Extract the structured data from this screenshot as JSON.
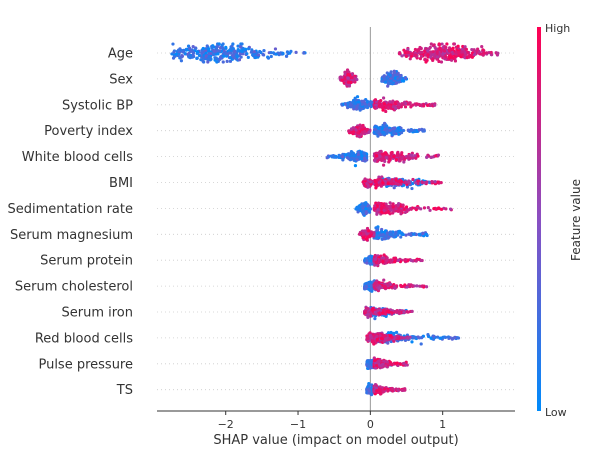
{
  "chart_data": {
    "type": "scatter",
    "subtype": "shap-beeswarm",
    "title": "",
    "xlabel": "SHAP value (impact on model output)",
    "ylabel": "",
    "xlim": [
      -2.95,
      2.0
    ],
    "x_ticks": [
      "−2",
      "−1",
      "0",
      "1"
    ],
    "x_tick_values": [
      -2,
      -1,
      0,
      1
    ],
    "grid": false,
    "zero_line": true,
    "colorbar": {
      "label": "Feature value",
      "high_label": "High",
      "low_label": "Low",
      "high_color": "#ff0052",
      "low_color": "#008bfb"
    },
    "features": [
      {
        "name": "Age",
        "low_range": [
          -2.75,
          -0.9
        ],
        "high_range": [
          0.4,
          1.8
        ],
        "low_peak": -2.1,
        "high_peak": 1.0,
        "density": 1.0
      },
      {
        "name": "Sex",
        "low_range": [
          0.15,
          0.5
        ],
        "high_range": [
          -0.42,
          -0.18
        ],
        "low_peak": 0.32,
        "high_peak": -0.3,
        "density": 0.55
      },
      {
        "name": "Systolic BP",
        "low_range": [
          -0.4,
          0.05
        ],
        "high_range": [
          0.05,
          0.9
        ],
        "low_peak": -0.15,
        "high_peak": 0.2,
        "density": 0.45
      },
      {
        "name": "Poverty index",
        "low_range": [
          0.05,
          0.75
        ],
        "high_range": [
          -0.3,
          0.0
        ],
        "low_peak": 0.2,
        "high_peak": -0.15,
        "density": 0.45
      },
      {
        "name": "White blood cells",
        "low_range": [
          -0.6,
          -0.05
        ],
        "high_range": [
          0.05,
          0.95
        ],
        "low_peak": -0.15,
        "high_peak": 0.25,
        "density": 0.5
      },
      {
        "name": "BMI",
        "low_range": [
          0.1,
          0.9
        ],
        "high_range": [
          -0.1,
          0.98
        ],
        "low_peak": 0.3,
        "high_peak": 0.1,
        "density": 0.4
      },
      {
        "name": "Sedimentation rate",
        "low_range": [
          -0.2,
          0.0
        ],
        "high_range": [
          0.05,
          1.15
        ],
        "low_peak": -0.08,
        "high_peak": 0.2,
        "density": 0.5
      },
      {
        "name": "Serum magnesium",
        "low_range": [
          0.05,
          0.8
        ],
        "high_range": [
          -0.15,
          0.05
        ],
        "low_peak": 0.15,
        "high_peak": -0.05,
        "density": 0.4
      },
      {
        "name": "Serum protein",
        "low_range": [
          -0.08,
          0.15
        ],
        "high_range": [
          0.05,
          0.72
        ],
        "low_peak": 0.0,
        "high_peak": 0.1,
        "density": 0.35
      },
      {
        "name": "Serum cholesterol",
        "low_range": [
          -0.08,
          0.2
        ],
        "high_range": [
          0.05,
          0.82
        ],
        "low_peak": 0.0,
        "high_peak": 0.1,
        "density": 0.35
      },
      {
        "name": "Serum iron",
        "low_range": [
          0.0,
          0.5
        ],
        "high_range": [
          -0.08,
          0.58
        ],
        "low_peak": 0.1,
        "high_peak": 0.0,
        "density": 0.35
      },
      {
        "name": "Red blood cells",
        "low_range": [
          0.05,
          1.22
        ],
        "high_range": [
          -0.05,
          0.6
        ],
        "low_peak": 0.3,
        "high_peak": 0.1,
        "density": 0.4
      },
      {
        "name": "Pulse pressure",
        "low_range": [
          -0.05,
          0.3
        ],
        "high_range": [
          0.05,
          0.52
        ],
        "low_peak": 0.0,
        "high_peak": 0.1,
        "density": 0.35
      },
      {
        "name": "TS",
        "low_range": [
          -0.05,
          0.3
        ],
        "high_range": [
          0.05,
          0.48
        ],
        "low_peak": 0.0,
        "high_peak": 0.08,
        "density": 0.3
      }
    ]
  }
}
